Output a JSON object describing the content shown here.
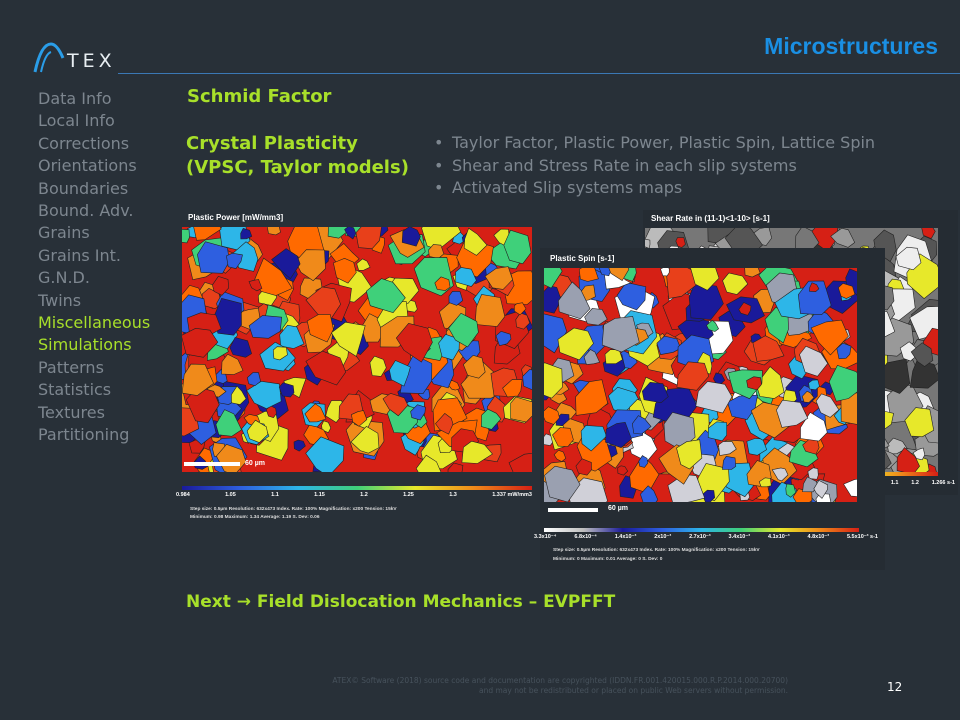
{
  "header": {
    "logo_text": "TEX",
    "title": "Microstructures"
  },
  "sidebar": {
    "items": [
      {
        "label": "Data Info",
        "active": false
      },
      {
        "label": "Local Info",
        "active": false
      },
      {
        "label": "Corrections",
        "active": false
      },
      {
        "label": "Orientations",
        "active": false
      },
      {
        "label": "Boundaries",
        "active": false
      },
      {
        "label": "Bound. Adv.",
        "active": false
      },
      {
        "label": "Grains",
        "active": false
      },
      {
        "label": "Grains Int.",
        "active": false
      },
      {
        "label": "G.N.D.",
        "active": false
      },
      {
        "label": "Twins",
        "active": false
      },
      {
        "label": "Miscellaneous",
        "active": true
      },
      {
        "label": "Simulations",
        "active": true
      },
      {
        "label": "Patterns",
        "active": false
      },
      {
        "label": "Statistics",
        "active": false
      },
      {
        "label": "Textures",
        "active": false
      },
      {
        "label": "Partitioning",
        "active": false
      }
    ]
  },
  "main": {
    "schmid_heading": "Schmid Factor",
    "cp_heading_line1": "Crystal Plasticity",
    "cp_heading_line2": "(VPSC, Taylor models)",
    "bullets": [
      "Taylor Factor, Plastic Power, Plastic Spin, Lattice Spin",
      "Shear and Stress Rate in each slip systems",
      "Activated Slip systems maps"
    ],
    "next_text": "Next → Field Dislocation Mechanics – EVPFFT"
  },
  "figures": {
    "plastic_power": {
      "title": "Plastic Power [mW/mm3]",
      "scale_label": "60 µm",
      "ticks": [
        "0.984",
        "1.05",
        "1.1",
        "1.15",
        "1.2",
        "1.25",
        "1.3",
        "1.337 mW/mm3"
      ],
      "stats_line1": "Step size: 0.5µm    Resolution: 632x473    Index. Rate: 100%    Magnification: x200    Tension: 15kV",
      "stats_line2": "Minimum: 0.98    Maximum: 1.34    Average: 1.19    S. Dev: 0.06"
    },
    "shear_rate": {
      "title": "Shear Rate in (11-1)<1-10> [s-1]",
      "ticks": [
        "1",
        "1.1",
        "1.2",
        "1.266 s-1"
      ]
    },
    "plastic_spin": {
      "title": "Plastic Spin [s-1]",
      "scale_label": "60 µm",
      "ticks": [
        "3.3x10⁻⁴",
        "6.8x10⁻⁴",
        "1.4x10⁻³",
        "2x10⁻³",
        "2.7x10⁻³",
        "3.4x10⁻³",
        "4.1x10⁻³",
        "4.8x10⁻³",
        "5.5x10⁻³ s-1"
      ],
      "stats_line1": "Step size: 0.5µm    Resolution: 632x473    Index. Rate: 100%    Magnification: x200    Tension: 15kV",
      "stats_line2": "Minimum: 0    Maximum: 0.01    Average: 0    S. Dev: 0"
    }
  },
  "footer": {
    "copyright_line1": "ATEX© Software (2018) source code and documentation are copyrighted (IDDN.FR.001.420015.000.R.P.2014.000.20700)",
    "copyright_line2": "and may not be redistributed or placed on public Web servers without permission.",
    "page_number": "12"
  },
  "colors": {
    "background": "#283038",
    "accent_green": "#a8e02a",
    "title_blue": "#1a8fe3",
    "nav_gray": "#7d868f"
  }
}
